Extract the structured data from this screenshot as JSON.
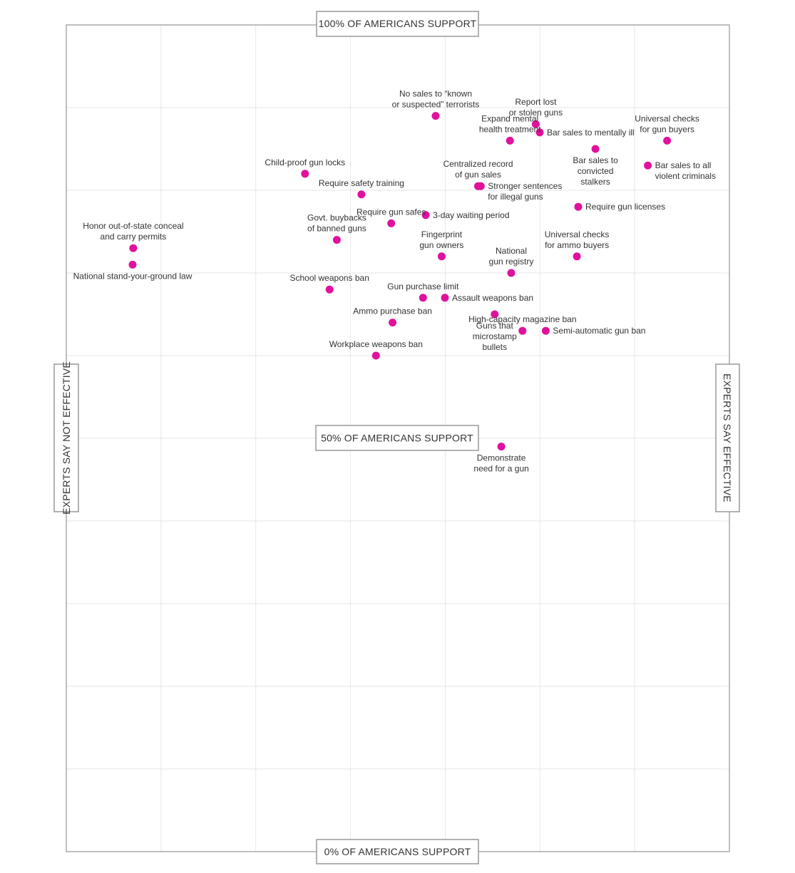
{
  "chart_data": {
    "type": "scatter",
    "x_axis": {
      "left_label": "EXPERTS SAY NOT EFFECTIVE",
      "right_label": "EXPERTS SAY EFFECTIVE"
    },
    "y_axis": {
      "top_label": "100% OF AMERICANS SUPPORT",
      "mid_label": "50% OF AMERICANS SUPPORT",
      "bottom_label": "0% OF AMERICANS SUPPORT",
      "ylim": [
        0,
        100
      ]
    },
    "grid": true,
    "marker_color": "#e0119d",
    "points": [
      {
        "lines": [
          "No sales to “known",
          "or suspected” terrorists"
        ],
        "x": 55.7,
        "y": 89,
        "label": "above"
      },
      {
        "lines": [
          "Report lost",
          "or stolen guns"
        ],
        "x": 70.8,
        "y": 88,
        "label": "above"
      },
      {
        "lines": [
          "Expand mental",
          "health treatment"
        ],
        "x": 66.9,
        "y": 86,
        "label": "above"
      },
      {
        "lines": [
          "Bar sales to mentally ill"
        ],
        "x": 71.4,
        "y": 87,
        "label": "right"
      },
      {
        "lines": [
          "Universal checks",
          "for gun buyers"
        ],
        "x": 90.6,
        "y": 86,
        "label": "above"
      },
      {
        "lines": [
          "Bar sales to",
          "convicted",
          "stalkers"
        ],
        "x": 79.8,
        "y": 85,
        "label": "below"
      },
      {
        "lines": [
          "Bar sales to all",
          "violent criminals"
        ],
        "x": 87.7,
        "y": 83,
        "label": "right"
      },
      {
        "lines": [
          "Child-proof gun locks"
        ],
        "x": 36.0,
        "y": 82,
        "label": "above"
      },
      {
        "lines": [
          "Centralized record",
          "of gun sales"
        ],
        "x": 62.1,
        "y": 80.5,
        "label": "above"
      },
      {
        "lines": [
          "Stronger sentences",
          "for illegal guns"
        ],
        "x": 62.5,
        "y": 80.5,
        "label": "right"
      },
      {
        "lines": [
          "Require safety training"
        ],
        "x": 44.5,
        "y": 79.5,
        "label": "above"
      },
      {
        "lines": [
          "Require gun licenses"
        ],
        "x": 77.2,
        "y": 78,
        "label": "right"
      },
      {
        "lines": [
          "3-day waiting period"
        ],
        "x": 54.2,
        "y": 77,
        "label": "right"
      },
      {
        "lines": [
          "Require gun safes"
        ],
        "x": 49.0,
        "y": 76,
        "label": "above"
      },
      {
        "lines": [
          "Govt. buybacks",
          "of banned guns"
        ],
        "x": 40.8,
        "y": 74,
        "label": "above"
      },
      {
        "lines": [
          "Honor out-of-state conceal",
          "and carry permits"
        ],
        "x": 10.1,
        "y": 73,
        "label": "above"
      },
      {
        "lines": [
          "Fingerprint",
          "gun owners"
        ],
        "x": 56.6,
        "y": 72,
        "label": "above"
      },
      {
        "lines": [
          "Universal checks",
          "for ammo buyers"
        ],
        "x": 77.0,
        "y": 72,
        "label": "above"
      },
      {
        "lines": [
          "National stand-your-ground law"
        ],
        "x": 10.0,
        "y": 71,
        "label": "below"
      },
      {
        "lines": [
          "National",
          "gun registry"
        ],
        "x": 67.1,
        "y": 70,
        "label": "above"
      },
      {
        "lines": [
          "School weapons ban"
        ],
        "x": 39.7,
        "y": 68,
        "label": "above"
      },
      {
        "lines": [
          "Gun purchase limit"
        ],
        "x": 53.8,
        "y": 67,
        "label": "above"
      },
      {
        "lines": [
          "Assault weapons ban"
        ],
        "x": 57.1,
        "y": 67,
        "label": "right"
      },
      {
        "lines": [
          "Guns that",
          "microstamp",
          "bullets"
        ],
        "x": 64.6,
        "y": 65,
        "label": "below"
      },
      {
        "lines": [
          "High-capacity magazine ban"
        ],
        "x": 68.8,
        "y": 63,
        "label": "above"
      },
      {
        "lines": [
          "Semi-automatic gun ban"
        ],
        "x": 72.3,
        "y": 63,
        "label": "right"
      },
      {
        "lines": [
          "Ammo purchase ban"
        ],
        "x": 49.2,
        "y": 64,
        "label": "above"
      },
      {
        "lines": [
          "Workplace weapons ban"
        ],
        "x": 46.7,
        "y": 60,
        "label": "above"
      },
      {
        "lines": [
          "Demonstrate",
          "need for a gun"
        ],
        "x": 65.6,
        "y": 49,
        "label": "below"
      }
    ]
  }
}
